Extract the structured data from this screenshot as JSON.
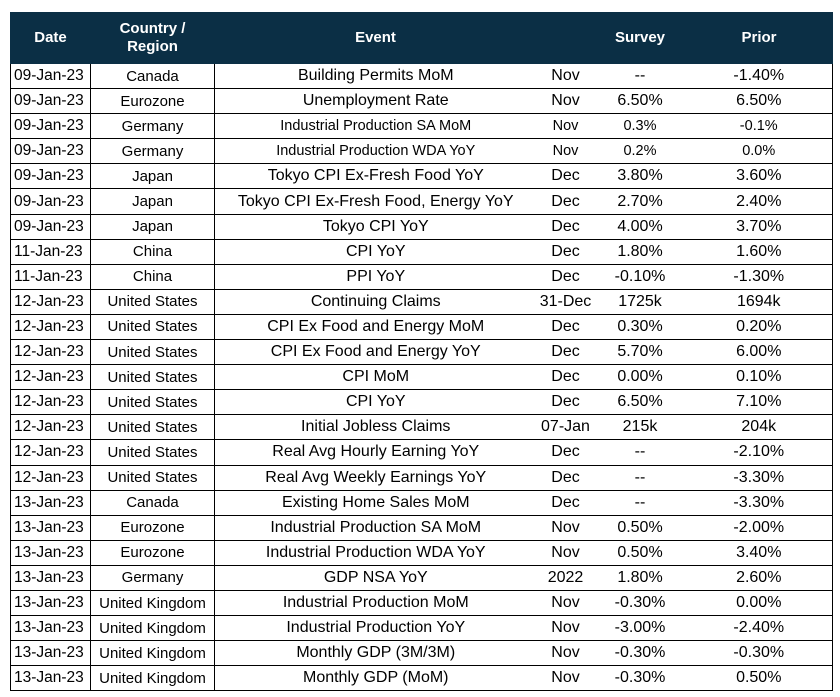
{
  "header": {
    "date": "Date",
    "country": "Country /\nRegion",
    "event": "Event",
    "period": "",
    "survey": "Survey",
    "prior": "Prior"
  },
  "rows": [
    {
      "date": "09-Jan-23",
      "country": "Canada",
      "event": "Building Permits MoM",
      "period": "Nov",
      "survey": "--",
      "prior": "-1.40%",
      "small": false
    },
    {
      "date": "09-Jan-23",
      "country": "Eurozone",
      "event": "Unemployment Rate",
      "period": "Nov",
      "survey": "6.50%",
      "prior": "6.50%",
      "small": false
    },
    {
      "date": "09-Jan-23",
      "country": "Germany",
      "event": "Industrial Production SA MoM",
      "period": "Nov",
      "survey": "0.3%",
      "prior": "-0.1%",
      "small": true
    },
    {
      "date": "09-Jan-23",
      "country": "Germany",
      "event": "Industrial Production WDA YoY",
      "period": "Nov",
      "survey": "0.2%",
      "prior": "0.0%",
      "small": true
    },
    {
      "date": "09-Jan-23",
      "country": "Japan",
      "event": "Tokyo CPI Ex-Fresh Food YoY",
      "period": "Dec",
      "survey": "3.80%",
      "prior": "3.60%",
      "small": false
    },
    {
      "date": "09-Jan-23",
      "country": "Japan",
      "event": "Tokyo CPI Ex-Fresh Food, Energy YoY",
      "period": "Dec",
      "survey": "2.70%",
      "prior": "2.40%",
      "small": false
    },
    {
      "date": "09-Jan-23",
      "country": "Japan",
      "event": "Tokyo CPI YoY",
      "period": "Dec",
      "survey": "4.00%",
      "prior": "3.70%",
      "small": false
    },
    {
      "date": "11-Jan-23",
      "country": "China",
      "event": "CPI YoY",
      "period": "Dec",
      "survey": "1.80%",
      "prior": "1.60%",
      "small": false
    },
    {
      "date": "11-Jan-23",
      "country": "China",
      "event": "PPI YoY",
      "period": "Dec",
      "survey": "-0.10%",
      "prior": "-1.30%",
      "small": false
    },
    {
      "date": "12-Jan-23",
      "country": "United States",
      "event": "Continuing Claims",
      "period": "31-Dec",
      "survey": "1725k",
      "prior": "1694k",
      "small": false
    },
    {
      "date": "12-Jan-23",
      "country": "United States",
      "event": "CPI Ex Food and Energy MoM",
      "period": "Dec",
      "survey": "0.30%",
      "prior": "0.20%",
      "small": false
    },
    {
      "date": "12-Jan-23",
      "country": "United States",
      "event": "CPI Ex Food and Energy YoY",
      "period": "Dec",
      "survey": "5.70%",
      "prior": "6.00%",
      "small": false
    },
    {
      "date": "12-Jan-23",
      "country": "United States",
      "event": "CPI MoM",
      "period": "Dec",
      "survey": "0.00%",
      "prior": "0.10%",
      "small": false
    },
    {
      "date": "12-Jan-23",
      "country": "United States",
      "event": "CPI YoY",
      "period": "Dec",
      "survey": "6.50%",
      "prior": "7.10%",
      "small": false
    },
    {
      "date": "12-Jan-23",
      "country": "United States",
      "event": "Initial Jobless Claims",
      "period": "07-Jan",
      "survey": "215k",
      "prior": "204k",
      "small": false
    },
    {
      "date": "12-Jan-23",
      "country": "United States",
      "event": "Real Avg Hourly Earning YoY",
      "period": "Dec",
      "survey": "--",
      "prior": "-2.10%",
      "small": false
    },
    {
      "date": "12-Jan-23",
      "country": "United States",
      "event": "Real Avg Weekly Earnings YoY",
      "period": "Dec",
      "survey": "--",
      "prior": "-3.30%",
      "small": false
    },
    {
      "date": "13-Jan-23",
      "country": "Canada",
      "event": "Existing Home Sales MoM",
      "period": "Dec",
      "survey": "--",
      "prior": "-3.30%",
      "small": false
    },
    {
      "date": "13-Jan-23",
      "country": "Eurozone",
      "event": "Industrial Production SA MoM",
      "period": "Nov",
      "survey": "0.50%",
      "prior": "-2.00%",
      "small": false
    },
    {
      "date": "13-Jan-23",
      "country": "Eurozone",
      "event": "Industrial Production WDA YoY",
      "period": "Nov",
      "survey": "0.50%",
      "prior": "3.40%",
      "small": false
    },
    {
      "date": "13-Jan-23",
      "country": "Germany",
      "event": "GDP NSA YoY",
      "period": "2022",
      "survey": "1.80%",
      "prior": "2.60%",
      "small": false
    },
    {
      "date": "13-Jan-23",
      "country": "United Kingdom",
      "event": "Industrial Production MoM",
      "period": "Nov",
      "survey": "-0.30%",
      "prior": "0.00%",
      "small": false
    },
    {
      "date": "13-Jan-23",
      "country": "United Kingdom",
      "event": "Industrial Production YoY",
      "period": "Nov",
      "survey": "-3.00%",
      "prior": "-2.40%",
      "small": false
    },
    {
      "date": "13-Jan-23",
      "country": "United Kingdom",
      "event": "Monthly GDP (3M/3M)",
      "period": "Nov",
      "survey": "-0.30%",
      "prior": "-0.30%",
      "small": false
    },
    {
      "date": "13-Jan-23",
      "country": "United Kingdom",
      "event": "Monthly GDP (MoM)",
      "period": "Nov",
      "survey": "-0.30%",
      "prior": "0.50%",
      "small": false
    }
  ]
}
